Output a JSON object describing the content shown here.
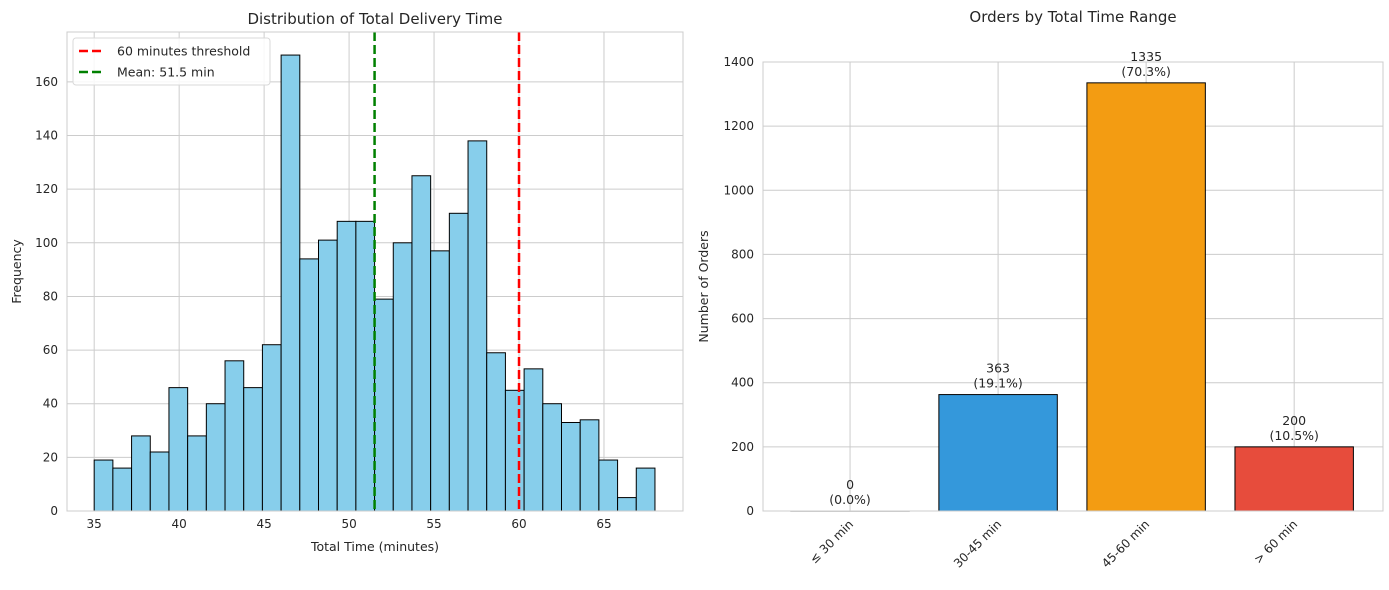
{
  "chart_data": [
    {
      "type": "bar",
      "subtype": "histogram",
      "title": "Distribution of Total Delivery Time",
      "xlabel": "Total Time (minutes)",
      "ylabel": "Frequency",
      "bin_start": 35,
      "bin_width": 1.1,
      "values": [
        19,
        16,
        28,
        22,
        46,
        28,
        40,
        56,
        46,
        62,
        170,
        94,
        101,
        108,
        108,
        79,
        100,
        125,
        97,
        111,
        138,
        59,
        45,
        53,
        40,
        33,
        34,
        19,
        5,
        16
      ],
      "xlim": [
        33.4,
        69.65
      ],
      "ylim": [
        0,
        178.6
      ],
      "xticks": [
        35,
        40,
        45,
        50,
        55,
        60,
        65
      ],
      "yticks": [
        0,
        20,
        40,
        60,
        80,
        100,
        120,
        140,
        160
      ],
      "grid": true,
      "bar_color": "#87CEEB",
      "edge_color": "#000000",
      "reference_lines": [
        {
          "name": "60 minutes threshold",
          "x": 60,
          "color": "#ff0000",
          "style": "dashed"
        },
        {
          "name": "Mean: 51.5 min",
          "x": 51.5,
          "color": "#008000",
          "style": "dashed"
        }
      ],
      "legend_position": "top-left"
    },
    {
      "type": "bar",
      "title": "Orders by Total Time Range",
      "xlabel": "",
      "ylabel": "Number of Orders",
      "categories": [
        "≤ 30 min",
        "30-45 min",
        "45-60 min",
        "> 60 min"
      ],
      "values": [
        0,
        363,
        1335,
        200
      ],
      "data_labels": [
        [
          "0",
          "(0.0%)"
        ],
        [
          "363",
          "(19.1%)"
        ],
        [
          "1335",
          "(70.3%)"
        ],
        [
          "200",
          "(10.5%)"
        ]
      ],
      "colors": [
        "#2ecc71",
        "#3498db",
        "#f39c12",
        "#e74c3c"
      ],
      "ylim": [
        0,
        1400
      ],
      "yticks": [
        0,
        200,
        400,
        600,
        800,
        1000,
        1200,
        1400
      ],
      "grid": true
    }
  ]
}
